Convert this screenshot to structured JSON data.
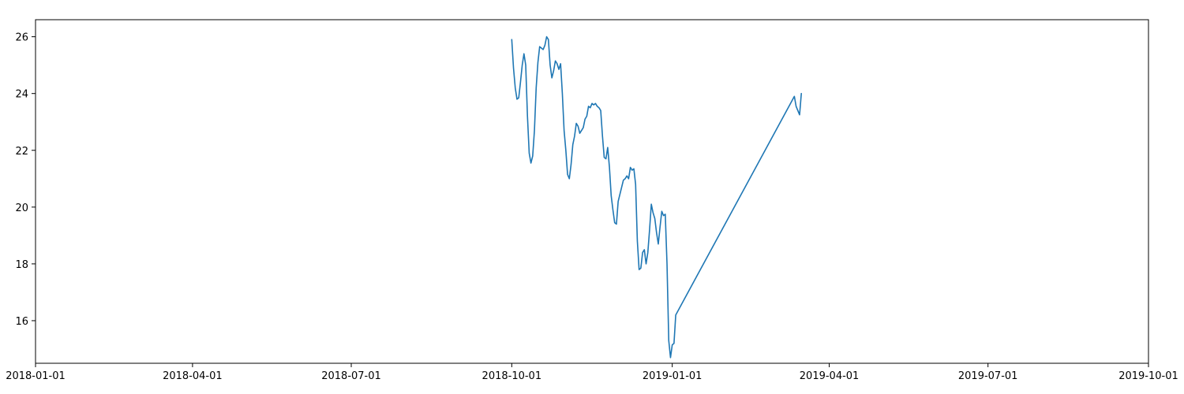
{
  "chart_data": {
    "type": "line",
    "title": "",
    "xlabel": "",
    "ylabel": "",
    "grid": false,
    "legend": "none",
    "x_axis": "date",
    "xlim": [
      "2018-01-01",
      "2019-10-01"
    ],
    "ylim": [
      14.5,
      26.6
    ],
    "x_ticks": [
      "2018-01-01",
      "2018-04-01",
      "2018-07-01",
      "2018-10-01",
      "2019-01-01",
      "2019-04-01",
      "2019-07-01",
      "2019-10-01"
    ],
    "y_ticks": [
      16,
      18,
      20,
      22,
      24,
      26
    ],
    "series": [
      {
        "color": "#1f77b4",
        "points": [
          [
            "2018-10-01",
            25.9
          ],
          [
            "2018-10-02",
            24.9
          ],
          [
            "2018-10-03",
            24.2
          ],
          [
            "2018-10-04",
            23.8
          ],
          [
            "2018-10-05",
            23.85
          ],
          [
            "2018-10-06",
            24.4
          ],
          [
            "2018-10-07",
            25.0
          ],
          [
            "2018-10-08",
            25.4
          ],
          [
            "2018-10-09",
            25.0
          ],
          [
            "2018-10-10",
            23.2
          ],
          [
            "2018-10-11",
            21.9
          ],
          [
            "2018-10-12",
            21.55
          ],
          [
            "2018-10-13",
            21.8
          ],
          [
            "2018-10-14",
            22.7
          ],
          [
            "2018-10-15",
            24.2
          ],
          [
            "2018-10-16",
            25.1
          ],
          [
            "2018-10-17",
            25.65
          ],
          [
            "2018-10-18",
            25.6
          ],
          [
            "2018-10-19",
            25.55
          ],
          [
            "2018-10-20",
            25.7
          ],
          [
            "2018-10-21",
            26.0
          ],
          [
            "2018-10-22",
            25.9
          ],
          [
            "2018-10-23",
            25.0
          ],
          [
            "2018-10-24",
            24.55
          ],
          [
            "2018-10-25",
            24.8
          ],
          [
            "2018-10-26",
            25.15
          ],
          [
            "2018-10-27",
            25.05
          ],
          [
            "2018-10-28",
            24.85
          ],
          [
            "2018-10-29",
            25.05
          ],
          [
            "2018-10-30",
            24.0
          ],
          [
            "2018-10-31",
            22.7
          ],
          [
            "2018-11-01",
            22.0
          ],
          [
            "2018-11-02",
            21.15
          ],
          [
            "2018-11-03",
            21.0
          ],
          [
            "2018-11-04",
            21.5
          ],
          [
            "2018-11-05",
            22.2
          ],
          [
            "2018-11-06",
            22.5
          ],
          [
            "2018-11-07",
            22.95
          ],
          [
            "2018-11-08",
            22.85
          ],
          [
            "2018-11-09",
            22.6
          ],
          [
            "2018-11-10",
            22.7
          ],
          [
            "2018-11-11",
            22.8
          ],
          [
            "2018-11-12",
            23.1
          ],
          [
            "2018-11-13",
            23.2
          ],
          [
            "2018-11-14",
            23.55
          ],
          [
            "2018-11-15",
            23.5
          ],
          [
            "2018-11-16",
            23.65
          ],
          [
            "2018-11-17",
            23.6
          ],
          [
            "2018-11-18",
            23.65
          ],
          [
            "2018-11-19",
            23.55
          ],
          [
            "2018-11-20",
            23.5
          ],
          [
            "2018-11-21",
            23.4
          ],
          [
            "2018-11-22",
            22.5
          ],
          [
            "2018-11-23",
            21.75
          ],
          [
            "2018-11-24",
            21.7
          ],
          [
            "2018-11-25",
            22.1
          ],
          [
            "2018-11-26",
            21.4
          ],
          [
            "2018-11-27",
            20.4
          ],
          [
            "2018-11-28",
            19.9
          ],
          [
            "2018-11-29",
            19.45
          ],
          [
            "2018-11-30",
            19.4
          ],
          [
            "2018-12-01",
            20.2
          ],
          [
            "2018-12-02",
            20.45
          ],
          [
            "2018-12-03",
            20.7
          ],
          [
            "2018-12-04",
            20.95
          ],
          [
            "2018-12-05",
            21.0
          ],
          [
            "2018-12-06",
            21.1
          ],
          [
            "2018-12-07",
            21.0
          ],
          [
            "2018-12-08",
            21.4
          ],
          [
            "2018-12-09",
            21.3
          ],
          [
            "2018-12-10",
            21.35
          ],
          [
            "2018-12-11",
            20.8
          ],
          [
            "2018-12-12",
            18.8
          ],
          [
            "2018-12-13",
            17.8
          ],
          [
            "2018-12-14",
            17.85
          ],
          [
            "2018-12-15",
            18.4
          ],
          [
            "2018-12-16",
            18.5
          ],
          [
            "2018-12-17",
            18.0
          ],
          [
            "2018-12-18",
            18.4
          ],
          [
            "2018-12-19",
            19.2
          ],
          [
            "2018-12-20",
            20.1
          ],
          [
            "2018-12-21",
            19.8
          ],
          [
            "2018-12-22",
            19.6
          ],
          [
            "2018-12-23",
            19.1
          ],
          [
            "2018-12-24",
            18.7
          ],
          [
            "2018-12-25",
            19.3
          ],
          [
            "2018-12-26",
            19.85
          ],
          [
            "2018-12-27",
            19.7
          ],
          [
            "2018-12-28",
            19.75
          ],
          [
            "2018-12-29",
            18.0
          ],
          [
            "2018-12-30",
            15.3
          ],
          [
            "2018-12-31",
            14.7
          ],
          [
            "2019-01-01",
            15.15
          ],
          [
            "2019-01-02",
            15.2
          ],
          [
            "2019-01-03",
            16.2
          ],
          [
            "2019-03-12",
            23.9
          ],
          [
            "2019-03-13",
            23.55
          ],
          [
            "2019-03-14",
            23.4
          ],
          [
            "2019-03-15",
            23.25
          ],
          [
            "2019-03-16",
            24.0
          ]
        ]
      }
    ]
  }
}
